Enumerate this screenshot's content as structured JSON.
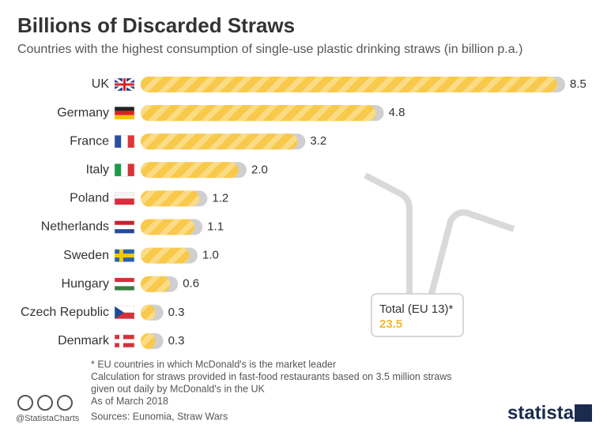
{
  "chart_data": {
    "type": "bar",
    "title": "Billions of Discarded Straws",
    "subtitle": "Countries with the highest consumption of single-use plastic drinking straws (in billion p.a.)",
    "categories": [
      "UK",
      "Germany",
      "France",
      "Italy",
      "Poland",
      "Netherlands",
      "Sweden",
      "Hungary",
      "Czech Republic",
      "Denmark"
    ],
    "values": [
      8.5,
      4.8,
      3.2,
      2.0,
      1.2,
      1.1,
      1.0,
      0.6,
      0.3,
      0.3
    ],
    "value_labels": [
      "8.5",
      "4.8",
      "3.2",
      "2.0",
      "1.2",
      "1.1",
      "1.0",
      "0.6",
      "0.3",
      "0.3"
    ],
    "color": "#f8c94a",
    "total_label": "Total (EU 13)*",
    "total_value": 23.5,
    "notes": [
      "* EU countries in which McDonald's is the market leader",
      "Calculation for straws provided in fast-food restaurants based on 3.5 million straws",
      "given out daily by McDonald's in the UK",
      "As of March 2018"
    ],
    "handle": "@StatistaCharts",
    "source": "Sources: Eunomia, Straw Wars",
    "brand": "statista"
  }
}
